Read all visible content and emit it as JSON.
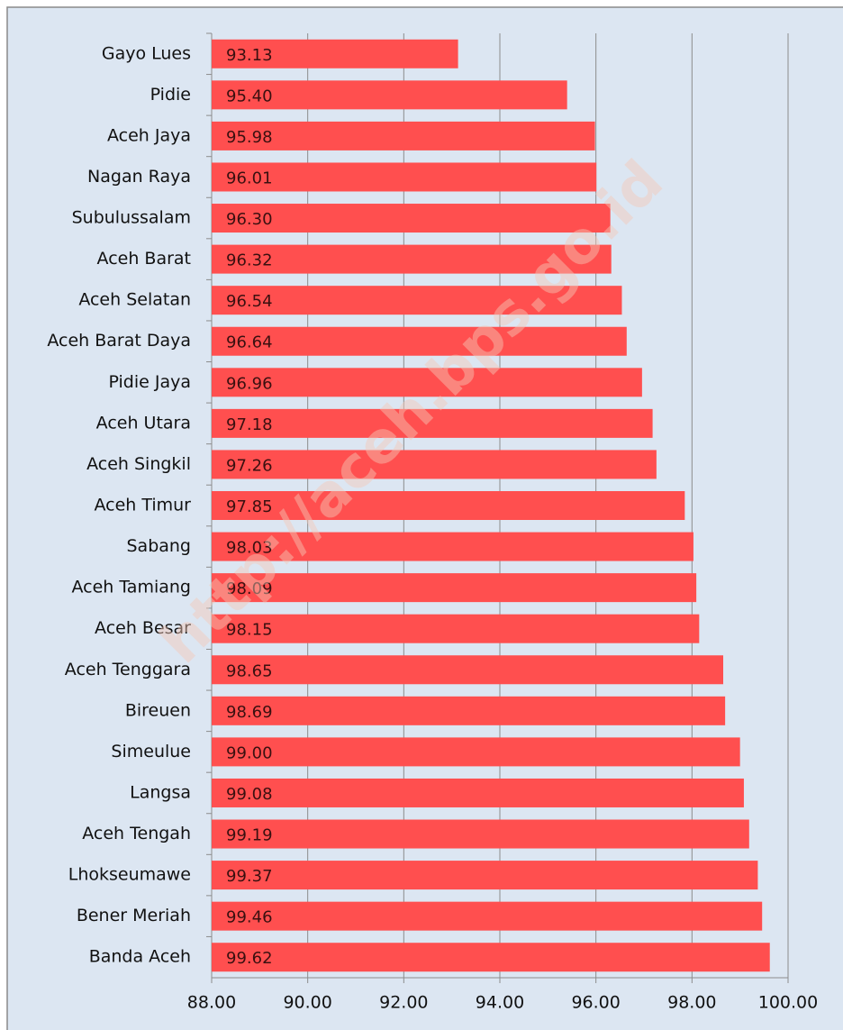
{
  "chart_data": {
    "type": "bar",
    "orientation": "horizontal",
    "categories": [
      "Gayo Lues",
      "Pidie",
      "Aceh Jaya",
      "Nagan Raya",
      "Subulussalam",
      "Aceh Barat",
      "Aceh Selatan",
      "Aceh Barat Daya",
      "Pidie Jaya",
      "Aceh Utara",
      "Aceh Singkil",
      "Aceh Timur",
      "Sabang",
      "Aceh Tamiang",
      "Aceh Besar",
      "Aceh Tenggara",
      "Bireuen",
      "Simeulue",
      "Langsa",
      "Aceh Tengah",
      "Lhokseumawe",
      "Bener Meriah",
      "Banda Aceh"
    ],
    "values": [
      93.13,
      95.4,
      95.98,
      96.01,
      96.3,
      96.32,
      96.54,
      96.64,
      96.96,
      97.18,
      97.26,
      97.85,
      98.03,
      98.09,
      98.15,
      98.65,
      98.69,
      99.0,
      99.08,
      99.19,
      99.37,
      99.46,
      99.62
    ],
    "value_labels": [
      "93.13",
      "95.40",
      "95.98",
      "96.01",
      "96.30",
      "96.32",
      "96.54",
      "96.64",
      "96.96",
      "97.18",
      "97.26",
      "97.85",
      "98.03",
      "98.09",
      "98.15",
      "98.65",
      "98.69",
      "99.00",
      "99.08",
      "99.19",
      "99.37",
      "99.46",
      "99.62"
    ],
    "color": "#ff4f4f",
    "xlim": [
      88,
      100
    ],
    "xticks": [
      {
        "value": 88,
        "label": "88.00"
      },
      {
        "value": 90,
        "label": "90.00"
      },
      {
        "value": 92,
        "label": "92.00"
      },
      {
        "value": 94,
        "label": "94.00"
      },
      {
        "value": 96,
        "label": "96.00"
      },
      {
        "value": 98,
        "label": "98.00"
      },
      {
        "value": 100,
        "label": "100.00"
      }
    ],
    "grid": true,
    "watermark": "http://aceh.bps.go.id"
  }
}
